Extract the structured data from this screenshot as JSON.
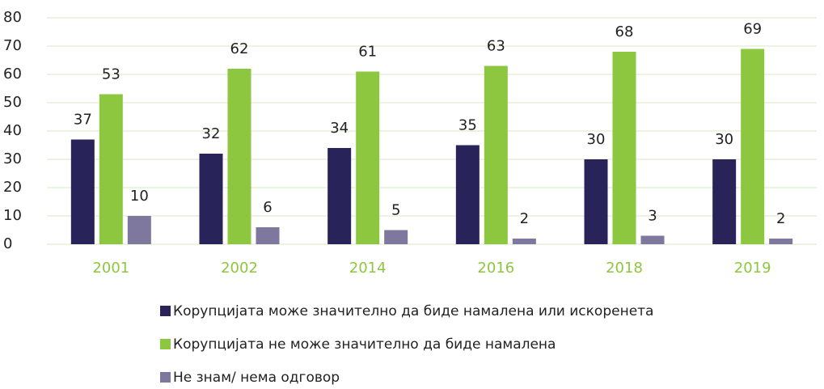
{
  "chart_data": {
    "type": "bar",
    "categories": [
      "2001",
      "2002",
      "2014",
      "2016",
      "2018",
      "2019"
    ],
    "series": [
      {
        "name": "Корупцијата може значително да биде намалена или искоренета",
        "color": "#28245a",
        "values": [
          37,
          32,
          34,
          35,
          30,
          30
        ]
      },
      {
        "name": "Корупцијата не може значително да биде намалена",
        "color": "#8dc63f",
        "values": [
          53,
          62,
          61,
          63,
          68,
          69
        ]
      },
      {
        "name": "Не знам/ нема одговор",
        "color": "#7f789e",
        "values": [
          10,
          6,
          5,
          2,
          3,
          2
        ]
      }
    ],
    "ylim": [
      0,
      80
    ],
    "yticks": [
      0,
      10,
      20,
      30,
      40,
      50,
      60,
      70,
      80
    ],
    "grid": true,
    "legend": "bottom"
  }
}
